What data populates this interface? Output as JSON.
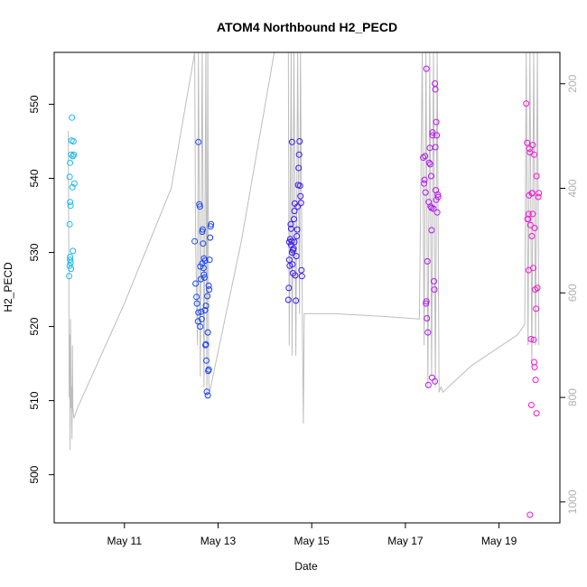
{
  "chart_data": {
    "type": "scatter",
    "title": "ATOM4 Northbound H2_PECD",
    "xlabel": "Date",
    "ylabel": "H2_PECD",
    "x_ticks": [
      "May 11",
      "May 13",
      "May 15",
      "May 17",
      "May 19"
    ],
    "x_tick_days": [
      11,
      13,
      15,
      17,
      19
    ],
    "xlim": [
      9.5,
      20.3
    ],
    "ylim": [
      493.5,
      557.0
    ],
    "y_ticks": [
      500,
      510,
      520,
      530,
      540,
      550
    ],
    "secondary_axis": {
      "description": "altitude/pressure trace (grey line), inverted scale",
      "ticks": [
        200,
        400,
        600,
        800,
        1000
      ],
      "ylim_top": 140,
      "ylim_bottom": 1040,
      "color": "#bdbdbd"
    },
    "series": [
      {
        "name": "H2_PECD",
        "points": [
          [
            9.82,
            526.8
          ],
          [
            9.83,
            528.2
          ],
          [
            9.84,
            529.0
          ],
          [
            9.85,
            528.6
          ],
          [
            9.86,
            527.8
          ],
          [
            9.84,
            529.4
          ],
          [
            9.83,
            533.8
          ],
          [
            9.85,
            536.3
          ],
          [
            9.84,
            536.8
          ],
          [
            9.83,
            540.2
          ],
          [
            9.84,
            542.1
          ],
          [
            9.86,
            543.2
          ],
          [
            9.87,
            545.1
          ],
          [
            9.88,
            548.2
          ],
          [
            9.91,
            545.0
          ],
          [
            9.9,
            543.0
          ],
          [
            9.92,
            543.2
          ],
          [
            9.93,
            539.3
          ],
          [
            9.89,
            538.8
          ],
          [
            9.9,
            530.2
          ],
          [
            12.5,
            531.5
          ],
          [
            12.52,
            525.8
          ],
          [
            12.54,
            524.0
          ],
          [
            12.55,
            523.1
          ],
          [
            12.57,
            520.7
          ],
          [
            12.58,
            521.9
          ],
          [
            12.6,
            536.5
          ],
          [
            12.61,
            536.2
          ],
          [
            12.62,
            528.1
          ],
          [
            12.63,
            526.4
          ],
          [
            12.64,
            522.0
          ],
          [
            12.65,
            521.0
          ],
          [
            12.66,
            532.8
          ],
          [
            12.67,
            533.1
          ],
          [
            12.68,
            531.2
          ],
          [
            12.69,
            527.9
          ],
          [
            12.7,
            527.0
          ],
          [
            12.71,
            526.6
          ],
          [
            12.72,
            522.2
          ],
          [
            12.73,
            517.5
          ],
          [
            12.74,
            517.6
          ],
          [
            12.75,
            515.4
          ],
          [
            12.76,
            511.2
          ],
          [
            12.78,
            510.7
          ],
          [
            12.79,
            514.0
          ],
          [
            12.8,
            514.2
          ],
          [
            12.81,
            525.0
          ],
          [
            12.82,
            529.0
          ],
          [
            12.83,
            532.0
          ],
          [
            12.84,
            533.5
          ],
          [
            12.85,
            533.8
          ],
          [
            12.58,
            544.9
          ],
          [
            12.72,
            528.9
          ],
          [
            12.77,
            524.1
          ],
          [
            12.66,
            528.5
          ],
          [
            12.7,
            529.2
          ],
          [
            12.62,
            520.0
          ],
          [
            12.78,
            519.2
          ],
          [
            12.8,
            525.5
          ],
          [
            12.74,
            522.8
          ],
          [
            14.5,
            523.6
          ],
          [
            14.51,
            525.2
          ],
          [
            14.52,
            529.0
          ],
          [
            14.53,
            528.2
          ],
          [
            14.54,
            531.8
          ],
          [
            14.55,
            533.8
          ],
          [
            14.56,
            533.2
          ],
          [
            14.57,
            531.5
          ],
          [
            14.58,
            530.0
          ],
          [
            14.59,
            528.4
          ],
          [
            14.6,
            530.3
          ],
          [
            14.61,
            530.5
          ],
          [
            14.62,
            534.5
          ],
          [
            14.63,
            535.6
          ],
          [
            14.64,
            536.6
          ],
          [
            14.65,
            526.9
          ],
          [
            14.66,
            523.5
          ],
          [
            14.67,
            529.5
          ],
          [
            14.68,
            532.2
          ],
          [
            14.69,
            533.1
          ],
          [
            14.7,
            536.2
          ],
          [
            14.71,
            539.1
          ],
          [
            14.72,
            541.4
          ],
          [
            14.73,
            543.2
          ],
          [
            14.74,
            545.0
          ],
          [
            14.75,
            539.0
          ],
          [
            14.76,
            537.6
          ],
          [
            14.77,
            536.7
          ],
          [
            14.78,
            527.6
          ],
          [
            14.79,
            526.8
          ],
          [
            14.58,
            544.9
          ],
          [
            14.52,
            531.4
          ],
          [
            14.56,
            531.0
          ],
          [
            14.6,
            527.2
          ],
          [
            14.63,
            531.4
          ],
          [
            17.38,
            542.8
          ],
          [
            17.4,
            539.3
          ],
          [
            17.41,
            539.8
          ],
          [
            17.42,
            543.0
          ],
          [
            17.43,
            538.1
          ],
          [
            17.44,
            523.1
          ],
          [
            17.45,
            523.4
          ],
          [
            17.46,
            521.1
          ],
          [
            17.47,
            528.8
          ],
          [
            17.48,
            519.2
          ],
          [
            17.49,
            512.1
          ],
          [
            17.5,
            536.8
          ],
          [
            17.51,
            542.1
          ],
          [
            17.52,
            544.1
          ],
          [
            17.53,
            541.9
          ],
          [
            17.54,
            536.2
          ],
          [
            17.55,
            540.3
          ],
          [
            17.56,
            533.0
          ],
          [
            17.57,
            513.1
          ],
          [
            17.58,
            546.2
          ],
          [
            17.6,
            535.9
          ],
          [
            17.61,
            526.1
          ],
          [
            17.62,
            525.0
          ],
          [
            17.63,
            512.6
          ],
          [
            17.64,
            544.2
          ],
          [
            17.65,
            538.4
          ],
          [
            17.66,
            537.1
          ],
          [
            17.68,
            535.4
          ],
          [
            17.69,
            537.8
          ],
          [
            17.7,
            537.5
          ],
          [
            17.66,
            547.6
          ],
          [
            17.64,
            552.0
          ],
          [
            17.63,
            552.8
          ],
          [
            17.56,
            536.0
          ],
          [
            17.45,
            554.8
          ],
          [
            17.58,
            545.8
          ],
          [
            17.67,
            545.8
          ],
          [
            19.58,
            550.1
          ],
          [
            19.6,
            544.8
          ],
          [
            19.61,
            534.5
          ],
          [
            19.62,
            534.5
          ],
          [
            19.63,
            535.2
          ],
          [
            19.64,
            537.7
          ],
          [
            19.65,
            544.0
          ],
          [
            19.66,
            543.5
          ],
          [
            19.67,
            533.7
          ],
          [
            19.68,
            518.3
          ],
          [
            19.69,
            509.4
          ],
          [
            19.7,
            532.2
          ],
          [
            19.71,
            538.0
          ],
          [
            19.72,
            535.2
          ],
          [
            19.73,
            527.9
          ],
          [
            19.74,
            518.2
          ],
          [
            19.75,
            515.2
          ],
          [
            19.76,
            514.5
          ],
          [
            19.77,
            525.0
          ],
          [
            19.78,
            512.8
          ],
          [
            19.79,
            522.4
          ],
          [
            19.8,
            508.3
          ],
          [
            19.82,
            525.2
          ],
          [
            19.84,
            537.5
          ],
          [
            19.85,
            538.0
          ],
          [
            19.63,
            527.6
          ],
          [
            19.66,
            494.6
          ],
          [
            19.72,
            544.5
          ],
          [
            19.76,
            533.3
          ],
          [
            19.8,
            540.3
          ],
          [
            19.7,
            538.0
          ],
          [
            19.75,
            543.2
          ]
        ]
      }
    ],
    "secondary_line": [
      [
        9.8,
        290
      ],
      [
        9.81,
        480
      ],
      [
        9.82,
        800
      ],
      [
        9.83,
        680
      ],
      [
        9.84,
        900
      ],
      [
        9.85,
        650
      ],
      [
        9.86,
        820
      ],
      [
        9.87,
        780
      ],
      [
        9.88,
        880
      ],
      [
        9.89,
        700
      ],
      [
        9.9,
        820
      ],
      [
        9.92,
        840
      ],
      [
        10.0,
        820
      ],
      [
        11.0,
        620
      ],
      [
        12.0,
        400
      ],
      [
        12.5,
        140
      ],
      [
        12.52,
        500
      ],
      [
        12.56,
        700
      ],
      [
        12.58,
        140
      ],
      [
        12.62,
        760
      ],
      [
        12.66,
        140
      ],
      [
        12.7,
        780
      ],
      [
        12.74,
        140
      ],
      [
        12.76,
        800
      ],
      [
        12.78,
        140
      ],
      [
        12.8,
        770
      ],
      [
        12.82,
        790
      ],
      [
        13.5,
        500
      ],
      [
        14.2,
        140
      ],
      [
        14.5,
        140
      ],
      [
        14.52,
        700
      ],
      [
        14.56,
        140
      ],
      [
        14.58,
        720
      ],
      [
        14.62,
        140
      ],
      [
        14.66,
        720
      ],
      [
        14.7,
        140
      ],
      [
        14.74,
        640
      ],
      [
        14.76,
        140
      ],
      [
        14.8,
        650
      ],
      [
        14.82,
        850
      ],
      [
        14.84,
        640
      ],
      [
        15.5,
        640
      ],
      [
        16.5,
        645
      ],
      [
        17.3,
        650
      ],
      [
        17.36,
        140
      ],
      [
        17.4,
        700
      ],
      [
        17.44,
        140
      ],
      [
        17.48,
        780
      ],
      [
        17.52,
        140
      ],
      [
        17.56,
        760
      ],
      [
        17.6,
        140
      ],
      [
        17.64,
        780
      ],
      [
        17.68,
        140
      ],
      [
        17.72,
        790
      ],
      [
        17.76,
        780
      ],
      [
        17.8,
        790
      ],
      [
        18.4,
        740
      ],
      [
        19.4,
        680
      ],
      [
        19.55,
        660
      ],
      [
        19.58,
        140
      ],
      [
        19.62,
        700
      ],
      [
        19.66,
        140
      ],
      [
        19.7,
        740
      ],
      [
        19.74,
        140
      ],
      [
        19.78,
        700
      ],
      [
        19.82,
        140
      ],
      [
        19.85,
        700
      ]
    ]
  }
}
